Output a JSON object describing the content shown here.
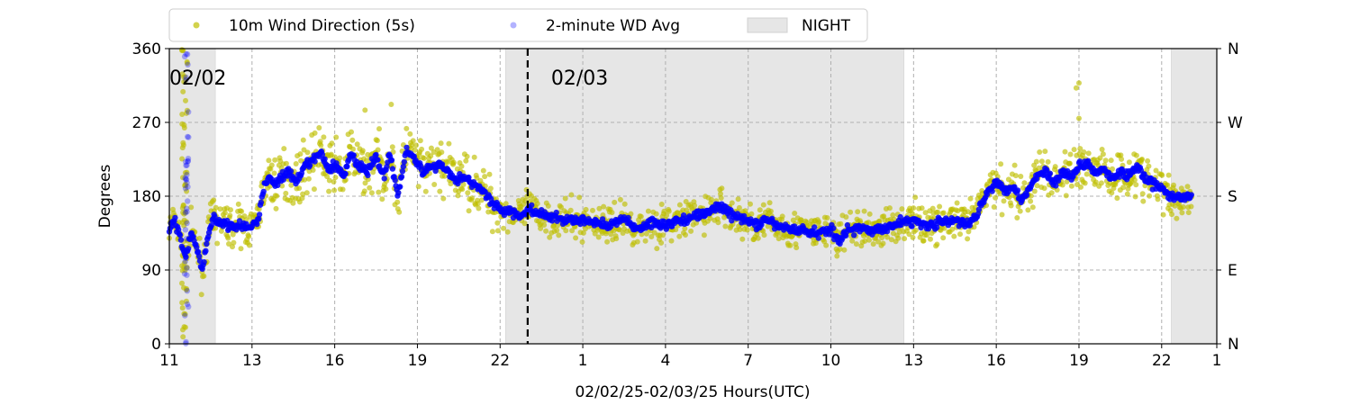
{
  "chart_data": {
    "type": "scatter",
    "xlabel": "02/02/25-02/03/25  Hours(UTC)",
    "ylabel": "Degrees",
    "x_range_hours": [
      11,
      49
    ],
    "ylim": [
      0,
      360
    ],
    "y_ticks": [
      0,
      90,
      180,
      270,
      360
    ],
    "y_right_ticks": [
      "N",
      "E",
      "S",
      "W",
      "N"
    ],
    "x_ticks": [
      {
        "h": 11,
        "label": "11"
      },
      {
        "h": 14,
        "label": "13"
      },
      {
        "h": 17,
        "label": "16"
      },
      {
        "h": 20,
        "label": "19"
      },
      {
        "h": 23,
        "label": "22"
      },
      {
        "h": 26,
        "label": "1"
      },
      {
        "h": 29,
        "label": "4"
      },
      {
        "h": 32,
        "label": "7"
      },
      {
        "h": 35,
        "label": "10"
      },
      {
        "h": 38,
        "label": "13"
      },
      {
        "h": 41,
        "label": "16"
      },
      {
        "h": 44,
        "label": "19"
      },
      {
        "h": 47,
        "label": "22"
      },
      {
        "h": 50,
        "label": "1"
      }
    ],
    "day_markers": [
      {
        "h": 11,
        "label": "02/02"
      },
      {
        "h": 24,
        "label": "02/03"
      }
    ],
    "night_periods": [
      [
        11,
        12.67
      ],
      [
        23.2,
        37.65
      ],
      [
        47.35,
        49
      ]
    ],
    "grid": true,
    "legend_position": "top",
    "legend": {
      "wd": "10m Wind Direction (5s)",
      "avg": "2-minute WD Avg",
      "night": "NIGHT"
    },
    "colors": {
      "wd": "#bfbf00",
      "avg": "#0000ff",
      "night": "#e6e6e6",
      "grid": "#b0b0b0"
    },
    "series": [
      {
        "name": "2-minute WD Avg",
        "x": [
          11,
          11.2,
          11.4,
          11.6,
          11.8,
          12,
          12.2,
          12.4,
          12.6,
          12.8,
          13,
          13.3,
          13.6,
          13.9,
          14.2,
          14.4,
          14.6,
          14.8,
          15,
          15.3,
          15.6,
          15.9,
          16.2,
          16.5,
          16.8,
          17,
          17.3,
          17.6,
          17.9,
          18.2,
          18.5,
          18.8,
          19,
          19.3,
          19.6,
          19.9,
          20.2,
          20.5,
          20.8,
          21.1,
          21.4,
          21.7,
          22,
          22.3,
          22.6,
          22.9,
          23.2,
          23.5,
          23.8,
          24,
          24.4,
          24.8,
          25.2,
          25.6,
          26,
          26.5,
          27,
          27.5,
          28,
          28.5,
          29,
          29.5,
          30,
          30.5,
          31,
          31.5,
          32,
          32.3,
          32.6,
          33,
          33.5,
          34,
          34.5,
          35,
          35.3,
          35.6,
          36,
          36.5,
          37,
          37.5,
          38,
          38.5,
          39,
          39.5,
          40,
          40.3,
          40.6,
          41,
          41.3,
          41.6,
          41.9,
          42.2,
          42.5,
          42.8,
          43.1,
          43.4,
          43.7,
          44,
          44.3,
          44.6,
          44.9,
          45.2,
          45.5,
          45.8,
          46.1,
          46.4,
          46.7,
          47,
          47.3,
          47.6,
          47.9,
          48.1
        ],
        "values": [
          140,
          152,
          125,
          108,
          135,
          118,
          88,
          132,
          155,
          148,
          147,
          142,
          145,
          140,
          150,
          185,
          205,
          195,
          200,
          210,
          195,
          215,
          225,
          232,
          210,
          220,
          205,
          232,
          215,
          210,
          228,
          205,
          232,
          180,
          240,
          225,
          210,
          215,
          220,
          210,
          200,
          205,
          195,
          190,
          175,
          168,
          160,
          160,
          155,
          165,
          158,
          155,
          152,
          150,
          150,
          148,
          145,
          152,
          140,
          148,
          145,
          150,
          155,
          160,
          168,
          155,
          150,
          145,
          150,
          145,
          140,
          138,
          135,
          140,
          125,
          140,
          140,
          138,
          142,
          148,
          150,
          145,
          148,
          150,
          145,
          160,
          180,
          200,
          185,
          195,
          175,
          190,
          205,
          212,
          195,
          210,
          205,
          215,
          222,
          210,
          215,
          200,
          210,
          205,
          215,
          200,
          195,
          190,
          180,
          178,
          178,
          182
        ]
      }
    ]
  }
}
